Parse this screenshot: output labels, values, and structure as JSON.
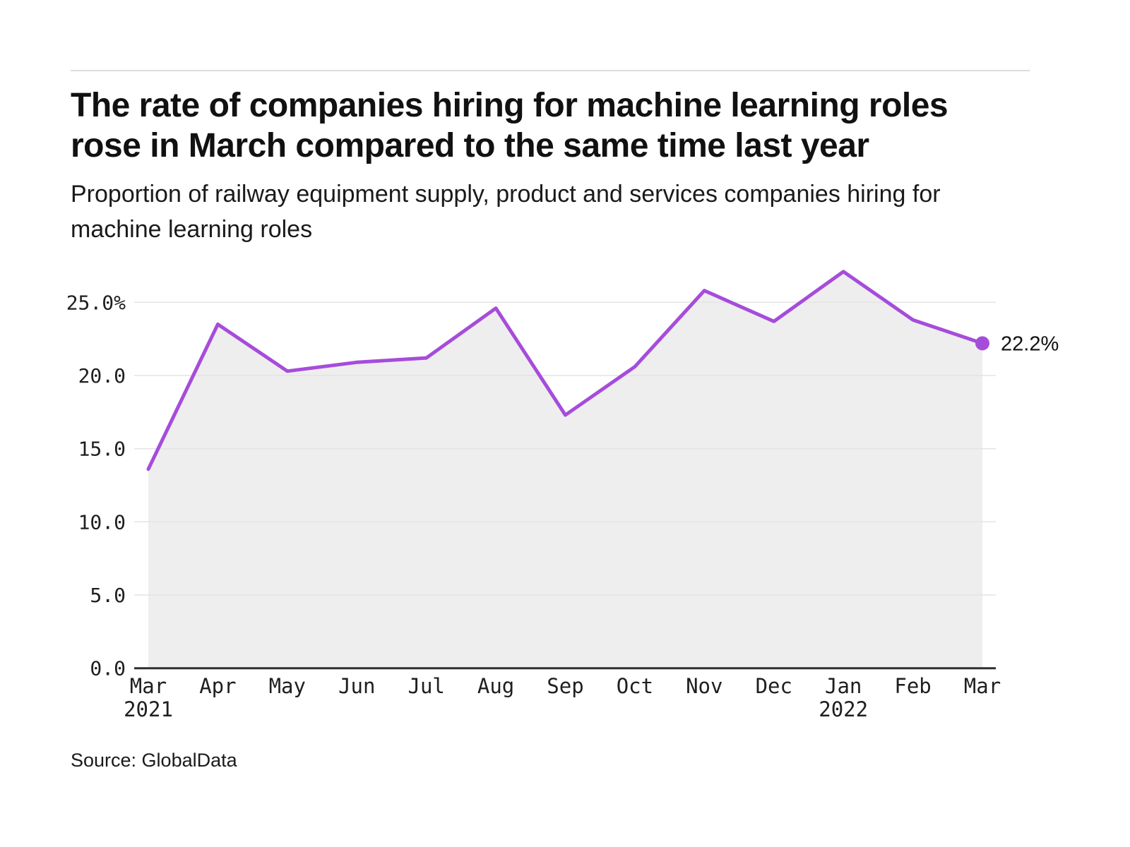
{
  "header": {
    "title": "The rate of companies hiring for machine learning roles rose in March compared to the same time last year",
    "subtitle": "Proportion of railway equipment supply, product and services companies hiring for machine learning roles"
  },
  "footer": {
    "source": "Source: GlobalData"
  },
  "chart_data": {
    "type": "area",
    "title": "Proportion of railway equipment supply, product and services companies hiring for machine learning roles",
    "categories": [
      "Mar",
      "Apr",
      "May",
      "Jun",
      "Jul",
      "Aug",
      "Sep",
      "Oct",
      "Nov",
      "Dec",
      "Jan",
      "Feb",
      "Mar"
    ],
    "year_labels": [
      {
        "index": 0,
        "label": "2021"
      },
      {
        "index": 10,
        "label": "2022"
      }
    ],
    "values": [
      13.6,
      23.5,
      20.3,
      20.9,
      21.2,
      24.6,
      17.3,
      20.6,
      25.8,
      23.7,
      27.1,
      23.8,
      22.2
    ],
    "end_label": "22.2%",
    "y_ticks": [
      {
        "value": 25,
        "label": "25.0%"
      },
      {
        "value": 20,
        "label": "20.0"
      },
      {
        "value": 15,
        "label": "15.0"
      },
      {
        "value": 10,
        "label": "10.0"
      },
      {
        "value": 5,
        "label": "5.0"
      },
      {
        "value": 0,
        "label": "0.0"
      }
    ],
    "ylim": [
      0,
      25
    ],
    "grid": true,
    "legend": false,
    "line_color": "#a64cdb",
    "area_color": "#eeeeee",
    "grid_color": "#e4e4e4",
    "axis_color": "#2f2f2f"
  }
}
